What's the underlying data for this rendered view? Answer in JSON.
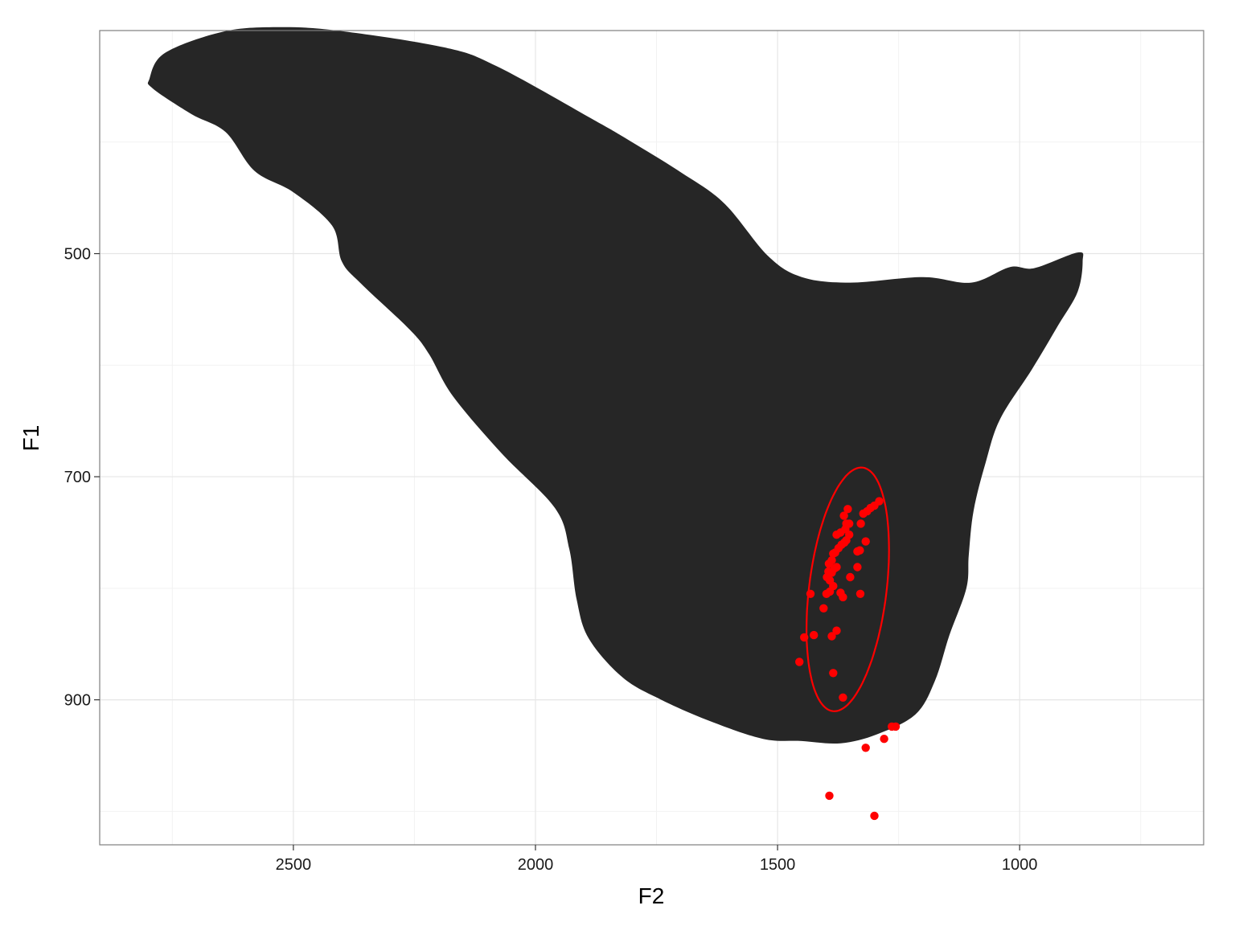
{
  "chart_data": {
    "type": "scatter",
    "title": "",
    "xlabel": "F2",
    "ylabel": "F1",
    "x_reversed": true,
    "y_reversed": true,
    "xlim": [
      2900,
      620
    ],
    "ylim": [
      300,
      1030
    ],
    "x_ticks": [
      2500,
      2000,
      1500,
      1000
    ],
    "y_ticks": [
      500,
      700,
      900
    ],
    "grid": true,
    "colors": {
      "region": "#262626",
      "points": "#ff0000",
      "ellipse": "#ff0000",
      "grid": "#e6e6e6",
      "border": "#7f7f7f"
    },
    "region_outline": [
      [
        2640,
        391
      ],
      [
        2710,
        375
      ],
      [
        2790,
        352
      ],
      [
        2797,
        343
      ],
      [
        2765,
        320
      ],
      [
        2645,
        301
      ],
      [
        2535,
        297
      ],
      [
        2410,
        300
      ],
      [
        2190,
        315
      ],
      [
        2080,
        332
      ],
      [
        1880,
        380
      ],
      [
        1820,
        395
      ],
      [
        1700,
        427
      ],
      [
        1610,
        455
      ],
      [
        1520,
        502
      ],
      [
        1450,
        521
      ],
      [
        1350,
        526
      ],
      [
        1200,
        521
      ],
      [
        1100,
        526
      ],
      [
        1020,
        512
      ],
      [
        970,
        513
      ],
      [
        880,
        499
      ],
      [
        870,
        507
      ],
      [
        880,
        534
      ],
      [
        920,
        564
      ],
      [
        975,
        604
      ],
      [
        1040,
        648
      ],
      [
        1070,
        687
      ],
      [
        1095,
        730
      ],
      [
        1105,
        770
      ],
      [
        1110,
        800
      ],
      [
        1145,
        842
      ],
      [
        1175,
        883
      ],
      [
        1215,
        913
      ],
      [
        1295,
        931
      ],
      [
        1370,
        939
      ],
      [
        1450,
        937
      ],
      [
        1530,
        935
      ],
      [
        1640,
        919
      ],
      [
        1740,
        900
      ],
      [
        1820,
        880
      ],
      [
        1890,
        845
      ],
      [
        1915,
        810
      ],
      [
        1930,
        765
      ],
      [
        1960,
        728
      ],
      [
        2070,
        679
      ],
      [
        2170,
        628
      ],
      [
        2220,
        590
      ],
      [
        2260,
        568
      ],
      [
        2360,
        527
      ],
      [
        2400,
        507
      ],
      [
        2420,
        475
      ],
      [
        2500,
        445
      ],
      [
        2580,
        426
      ]
    ],
    "ellipse": {
      "cx": 1355,
      "cy": 801,
      "rx": 80,
      "ry": 110,
      "tilt_deg": 7
    },
    "points": [
      [
        1455,
        866
      ],
      [
        1445,
        844
      ],
      [
        1425,
        842
      ],
      [
        1432,
        805
      ],
      [
        1405,
        818
      ],
      [
        1399,
        805
      ],
      [
        1392,
        803
      ],
      [
        1385,
        798
      ],
      [
        1398,
        790
      ],
      [
        1395,
        785
      ],
      [
        1382,
        782
      ],
      [
        1378,
        781
      ],
      [
        1394,
        778
      ],
      [
        1388,
        775
      ],
      [
        1385,
        769
      ],
      [
        1381,
        768
      ],
      [
        1374,
        764
      ],
      [
        1368,
        761
      ],
      [
        1362,
        759
      ],
      [
        1358,
        757
      ],
      [
        1352,
        752
      ],
      [
        1360,
        747
      ],
      [
        1370,
        750
      ],
      [
        1378,
        752
      ],
      [
        1358,
        742
      ],
      [
        1352,
        742
      ],
      [
        1363,
        735
      ],
      [
        1355,
        729
      ],
      [
        1335,
        781
      ],
      [
        1329,
        805
      ],
      [
        1318,
        758
      ],
      [
        1330,
        766
      ],
      [
        1328,
        742
      ],
      [
        1323,
        733
      ],
      [
        1315,
        731
      ],
      [
        1308,
        728
      ],
      [
        1300,
        726
      ],
      [
        1290,
        722
      ],
      [
        1335,
        767
      ],
      [
        1350,
        790
      ],
      [
        1370,
        804
      ],
      [
        1365,
        808
      ],
      [
        1388,
        786
      ],
      [
        1392,
        793
      ],
      [
        1378,
        838
      ],
      [
        1388,
        843
      ],
      [
        1385,
        876
      ],
      [
        1365,
        898
      ],
      [
        1280,
        935
      ],
      [
        1264,
        924
      ],
      [
        1256,
        924
      ],
      [
        1318,
        943
      ],
      [
        1393,
        986
      ],
      [
        1300,
        1004
      ]
    ]
  }
}
